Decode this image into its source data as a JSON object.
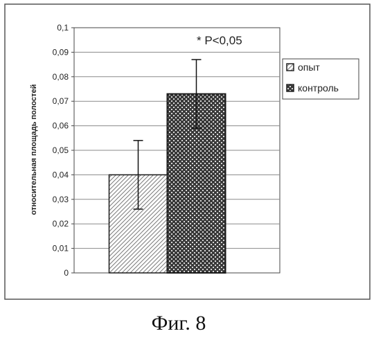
{
  "chart_data": {
    "type": "bar",
    "categories": [
      "опыт",
      "контроль"
    ],
    "series": [
      {
        "name": "опыт",
        "value": 0.04,
        "error_low": 0.026,
        "error_high": 0.054,
        "pattern": "diagonal-hatch"
      },
      {
        "name": "контроль",
        "value": 0.073,
        "error_low": 0.059,
        "error_high": 0.087,
        "pattern": "checkered"
      }
    ],
    "title": "",
    "xlabel": "",
    "ylabel": "относительная площадь полостей",
    "ylim": [
      0,
      0.1
    ],
    "yticks": [
      "0",
      "0,01",
      "0,02",
      "0,03",
      "0,04",
      "0,05",
      "0,06",
      "0,07",
      "0,08",
      "0,09",
      "0,1"
    ],
    "annotation": "* P<0,05",
    "grid": true,
    "legend_position": "right",
    "legend": [
      "опыт",
      "контроль"
    ]
  },
  "caption": "Фиг. 8",
  "colors": {
    "bar_fill": "#ffffff",
    "pattern_dark": "#3a3a3a",
    "frame": "#444444",
    "grid": "#8a8a8a"
  }
}
